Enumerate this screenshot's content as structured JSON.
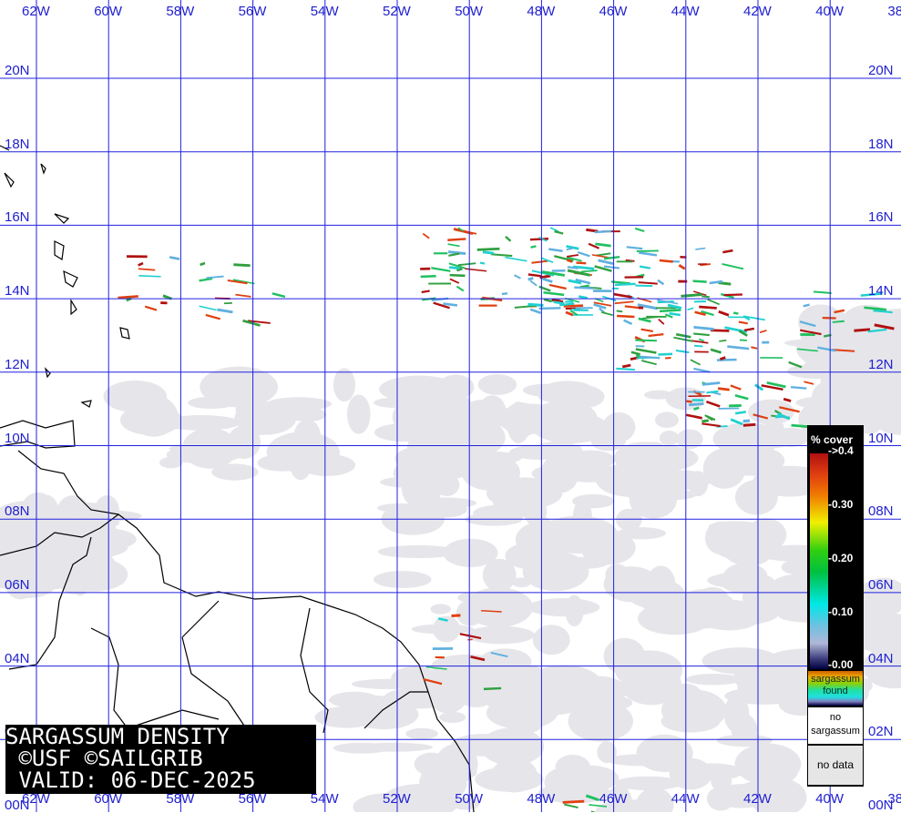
{
  "map": {
    "longitude_labels": [
      "62W",
      "60W",
      "58W",
      "56W",
      "54W",
      "52W",
      "50W",
      "48W",
      "46W",
      "44W",
      "42W",
      "40W",
      "38"
    ],
    "latitude_labels": [
      "20N",
      "18N",
      "16N",
      "14N",
      "12N",
      "10N",
      "08N",
      "06N",
      "04N",
      "02N",
      "00N"
    ],
    "grid_color": "#2020e0",
    "cloud_color": "#e6e6ea",
    "land_outline_color": "#000000"
  },
  "title": {
    "line1": "SARGASSUM DENSITY",
    "line2": " ©USF ©SAILGRIB",
    "line3": " VALID: 06-DEC-2025"
  },
  "legend": {
    "heading": "% cover",
    "ticks": [
      "->0.4",
      "-0.30",
      "-0.20",
      "-0.10",
      "-0.00"
    ],
    "found_line1": "sargassum",
    "found_line2": "found",
    "no_sargassum_line1": "no",
    "no_sargassum_line2": "sargassum",
    "no_data": "no data"
  }
}
